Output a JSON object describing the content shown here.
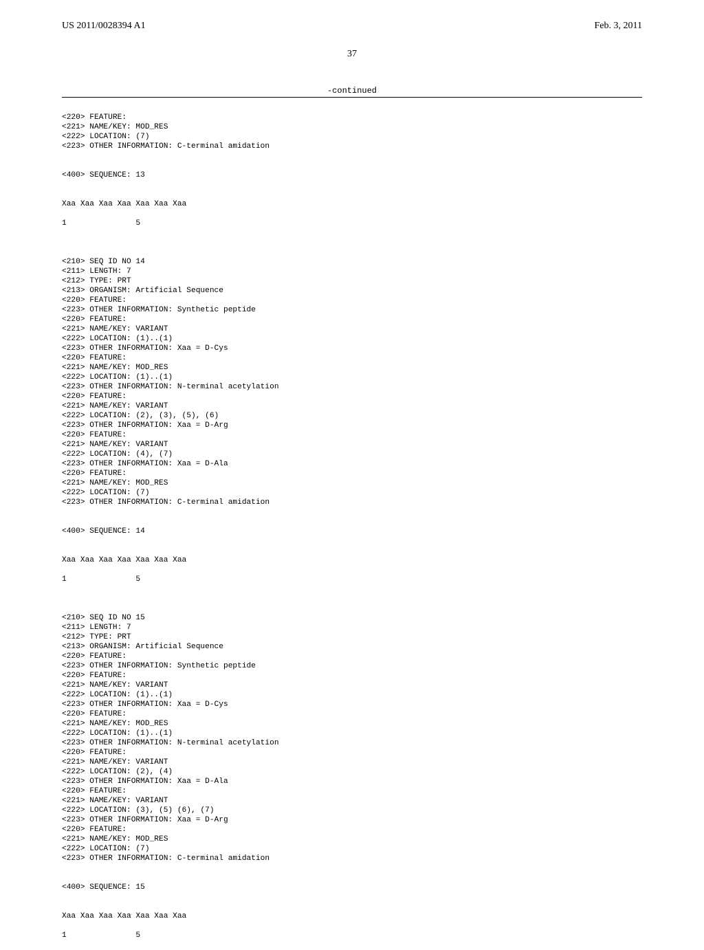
{
  "header": {
    "left": "US 2011/0028394 A1",
    "right": "Feb. 3, 2011"
  },
  "pageNumber": "37",
  "continuedLabel": "-continued",
  "seq13": {
    "features": [
      "<220> FEATURE:",
      "<221> NAME/KEY: MOD_RES",
      "<222> LOCATION: (7)",
      "<223> OTHER INFORMATION: C-terminal amidation"
    ],
    "sequenceLabel": "<400> SEQUENCE: 13",
    "sequenceLine1": "Xaa Xaa Xaa Xaa Xaa Xaa Xaa",
    "sequenceLine2": "1               5"
  },
  "seq14": {
    "header": [
      "<210> SEQ ID NO 14",
      "<211> LENGTH: 7",
      "<212> TYPE: PRT",
      "<213> ORGANISM: Artificial Sequence",
      "<220> FEATURE:",
      "<223> OTHER INFORMATION: Synthetic peptide",
      "<220> FEATURE:",
      "<221> NAME/KEY: VARIANT",
      "<222> LOCATION: (1)..(1)",
      "<223> OTHER INFORMATION: Xaa = D-Cys",
      "<220> FEATURE:",
      "<221> NAME/KEY: MOD_RES",
      "<222> LOCATION: (1)..(1)",
      "<223> OTHER INFORMATION: N-terminal acetylation",
      "<220> FEATURE:",
      "<221> NAME/KEY: VARIANT",
      "<222> LOCATION: (2), (3), (5), (6)",
      "<223> OTHER INFORMATION: Xaa = D-Arg",
      "<220> FEATURE:",
      "<221> NAME/KEY: VARIANT",
      "<222> LOCATION: (4), (7)",
      "<223> OTHER INFORMATION: Xaa = D-Ala",
      "<220> FEATURE:",
      "<221> NAME/KEY: MOD_RES",
      "<222> LOCATION: (7)",
      "<223> OTHER INFORMATION: C-terminal amidation"
    ],
    "sequenceLabel": "<400> SEQUENCE: 14",
    "sequenceLine1": "Xaa Xaa Xaa Xaa Xaa Xaa Xaa",
    "sequenceLine2": "1               5"
  },
  "seq15": {
    "header": [
      "<210> SEQ ID NO 15",
      "<211> LENGTH: 7",
      "<212> TYPE: PRT",
      "<213> ORGANISM: Artificial Sequence",
      "<220> FEATURE:",
      "<223> OTHER INFORMATION: Synthetic peptide",
      "<220> FEATURE:",
      "<221> NAME/KEY: VARIANT",
      "<222> LOCATION: (1)..(1)",
      "<223> OTHER INFORMATION: Xaa = D-Cys",
      "<220> FEATURE:",
      "<221> NAME/KEY: MOD_RES",
      "<222> LOCATION: (1)..(1)",
      "<223> OTHER INFORMATION: N-terminal acetylation",
      "<220> FEATURE:",
      "<221> NAME/KEY: VARIANT",
      "<222> LOCATION: (2), (4)",
      "<223> OTHER INFORMATION: Xaa = D-Ala",
      "<220> FEATURE:",
      "<221> NAME/KEY: VARIANT",
      "<222> LOCATION: (3), (5) (6), (7)",
      "<223> OTHER INFORMATION: Xaa = D-Arg",
      "<220> FEATURE:",
      "<221> NAME/KEY: MOD_RES",
      "<222> LOCATION: (7)",
      "<223> OTHER INFORMATION: C-terminal amidation"
    ],
    "sequenceLabel": "<400> SEQUENCE: 15",
    "sequenceLine1": "Xaa Xaa Xaa Xaa Xaa Xaa Xaa",
    "sequenceLine2": "1               5"
  }
}
